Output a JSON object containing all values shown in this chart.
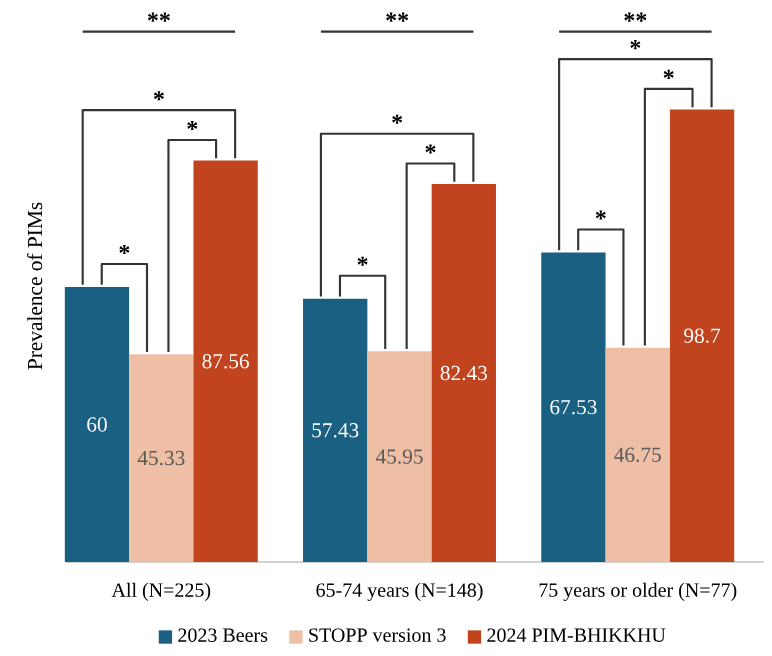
{
  "chart_data": {
    "type": "bar",
    "ylabel": "Prevalence of PIMs",
    "categories": [
      "All (N=225)",
      "65-74 years (N=148)",
      "75 years or older (N=77)"
    ],
    "series": [
      {
        "name": "2023 Beers",
        "color": "#1a6083",
        "values": [
          60,
          57.43,
          67.53
        ]
      },
      {
        "name": "STOPP version 3",
        "color": "#eebfa5",
        "values": [
          45.33,
          45.95,
          46.75
        ]
      },
      {
        "name": "2024 PIM-BHIKKHU",
        "color": "#c1441f",
        "values": [
          87.56,
          82.43,
          98.7
        ]
      }
    ],
    "data_labels": true,
    "legend": "bottom",
    "annotations": [
      "**",
      "*",
      "*",
      "*",
      "**",
      "*",
      "*",
      "*",
      "**",
      "*",
      "*",
      "*"
    ]
  }
}
